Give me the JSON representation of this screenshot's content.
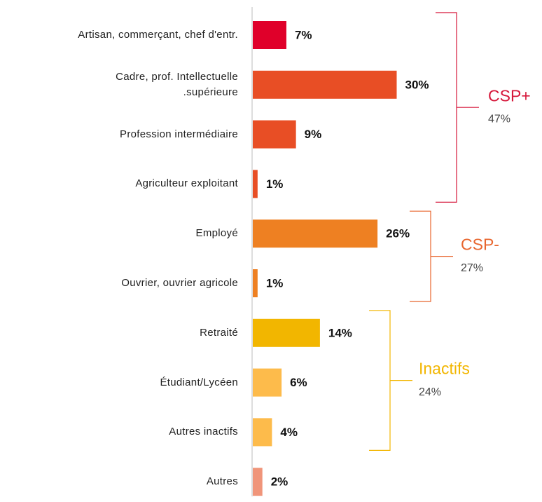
{
  "chart_data": {
    "type": "bar",
    "orientation": "horizontal",
    "categories": [
      "Artisan, commerçant, chef d'entr.",
      "Cadre, prof. Intellectuelle\n.supérieure",
      "Profession intermédiaire",
      "Agriculteur exploitant",
      "Employé",
      "Ouvrier, ouvrier agricole",
      "Retraité",
      "Étudiant/Lycéen",
      "Autres inactifs",
      "Autres"
    ],
    "values": [
      7,
      30,
      9,
      1,
      26,
      1,
      14,
      6,
      4,
      2
    ],
    "value_labels": [
      "7%",
      "30%",
      "9%",
      "1%",
      "26%",
      "1%",
      "14%",
      "6%",
      "4%",
      "2%"
    ],
    "colors": [
      "#e0002a",
      "#e84e25",
      "#e84e25",
      "#e84e25",
      "#ee8022",
      "#ee8022",
      "#f2b600",
      "#fdbb4b",
      "#fdbb4b",
      "#f0957a"
    ],
    "groups": [
      {
        "name": "CSP+",
        "value": 47,
        "value_label": "47%",
        "color": "#d6173a",
        "start": 0,
        "end": 3
      },
      {
        "name": "CSP-",
        "value": 27,
        "value_label": "27%",
        "color": "#e8662e",
        "start": 4,
        "end": 5
      },
      {
        "name": "Inactifs",
        "value": 24,
        "value_label": "24%",
        "color": "#f2b600",
        "start": 6,
        "end": 8
      }
    ]
  }
}
